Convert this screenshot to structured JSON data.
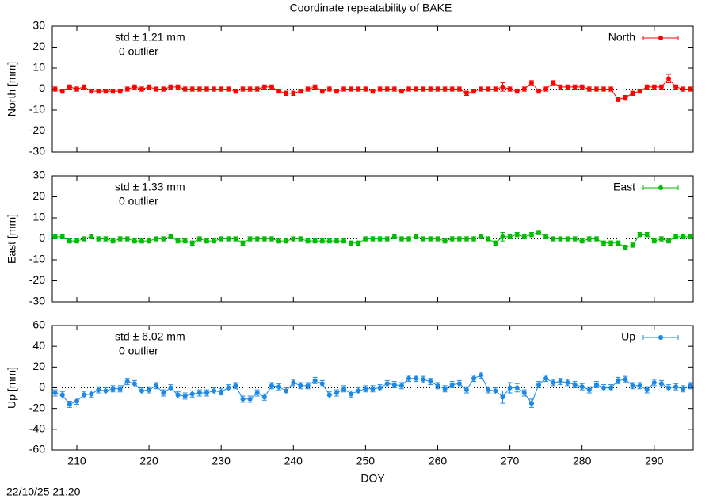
{
  "page": {
    "title": "Coordinate repeatability of BAKE",
    "timestamp": "22/10/25 21:20"
  },
  "chart_data": [
    {
      "type": "line",
      "ylabel": "North [mm]",
      "legend": "upper right",
      "zero_line": true,
      "show_xtick_labels": false,
      "annotations": [
        {
          "text": "std ± 1.21 mm",
          "color": "#ff0000"
        },
        {
          "text": "0 outlier",
          "color": "#000000"
        }
      ],
      "x": [
        207,
        208,
        209,
        210,
        211,
        212,
        213,
        214,
        215,
        216,
        217,
        218,
        219,
        220,
        221,
        222,
        223,
        224,
        225,
        226,
        227,
        228,
        229,
        230,
        231,
        232,
        233,
        234,
        235,
        236,
        237,
        238,
        239,
        240,
        241,
        242,
        243,
        244,
        245,
        246,
        247,
        248,
        249,
        250,
        251,
        252,
        253,
        254,
        255,
        256,
        257,
        258,
        259,
        260,
        261,
        262,
        263,
        264,
        265,
        266,
        267,
        268,
        269,
        270,
        271,
        272,
        273,
        274,
        275,
        276,
        277,
        278,
        279,
        280,
        281,
        282,
        283,
        284,
        285,
        286,
        287,
        288,
        289,
        290,
        291,
        292,
        293,
        294,
        295
      ],
      "xlim": [
        206.6,
        295.4
      ],
      "xticks": [
        210,
        220,
        230,
        240,
        250,
        260,
        270,
        280,
        290
      ],
      "ylim": [
        -30,
        30
      ],
      "yticks": [
        -30,
        -20,
        -10,
        0,
        10,
        20,
        30
      ],
      "series": [
        {
          "name": "North",
          "color": "#ff0000",
          "values": [
            0,
            -1,
            1,
            0,
            1,
            -1,
            -1,
            -1,
            -1,
            -1,
            0,
            1,
            0,
            1,
            0,
            0,
            1,
            1,
            0,
            0,
            0,
            0,
            0,
            0,
            0,
            -1,
            0,
            0,
            0,
            1,
            1,
            -1,
            -2,
            -2,
            -1,
            0,
            1,
            -1,
            0,
            -1,
            0,
            0,
            0,
            0,
            -1,
            0,
            0,
            0,
            -1,
            0,
            0,
            0,
            0,
            0,
            0,
            0,
            0,
            -2,
            -1,
            0,
            0,
            0,
            1,
            0,
            -1,
            0,
            3,
            -1,
            0,
            3,
            1,
            1,
            1,
            1,
            0,
            0,
            0,
            0,
            -5,
            -4,
            -2,
            -1,
            1,
            1,
            1,
            5,
            1,
            0,
            0
          ],
          "errors": [
            1,
            1,
            1,
            1,
            1,
            1,
            1,
            1,
            1,
            1,
            1,
            1,
            1,
            1,
            1,
            1,
            1,
            1,
            1,
            1,
            1,
            1,
            1,
            1,
            1,
            1,
            1,
            1,
            1,
            1,
            1,
            1,
            1,
            1,
            1,
            1,
            1,
            1,
            1,
            1,
            1,
            1,
            1,
            1,
            1,
            1,
            1,
            1,
            1,
            1,
            1,
            1,
            1,
            1,
            1,
            1,
            1,
            1,
            1,
            1,
            1,
            1,
            2,
            1,
            1,
            1,
            1,
            1,
            1,
            1,
            1,
            1,
            1,
            1,
            1,
            1,
            1,
            1,
            1,
            1,
            1,
            1,
            1,
            1,
            1,
            2,
            1,
            1,
            1
          ]
        }
      ]
    },
    {
      "type": "line",
      "ylabel": "East [mm]",
      "legend": "upper right",
      "zero_line": true,
      "show_xtick_labels": false,
      "annotations": [
        {
          "text": "std ± 1.33 mm",
          "color": "#00bb00"
        },
        {
          "text": "0 outlier",
          "color": "#000000"
        }
      ],
      "x": [
        207,
        208,
        209,
        210,
        211,
        212,
        213,
        214,
        215,
        216,
        217,
        218,
        219,
        220,
        221,
        222,
        223,
        224,
        225,
        226,
        227,
        228,
        229,
        230,
        231,
        232,
        233,
        234,
        235,
        236,
        237,
        238,
        239,
        240,
        241,
        242,
        243,
        244,
        245,
        246,
        247,
        248,
        249,
        250,
        251,
        252,
        253,
        254,
        255,
        256,
        257,
        258,
        259,
        260,
        261,
        262,
        263,
        264,
        265,
        266,
        267,
        268,
        269,
        270,
        271,
        272,
        273,
        274,
        275,
        276,
        277,
        278,
        279,
        280,
        281,
        282,
        283,
        284,
        285,
        286,
        287,
        288,
        289,
        290,
        291,
        292,
        293,
        294,
        295
      ],
      "xlim": [
        206.6,
        295.4
      ],
      "xticks": [
        210,
        220,
        230,
        240,
        250,
        260,
        270,
        280,
        290
      ],
      "ylim": [
        -30,
        30
      ],
      "yticks": [
        -30,
        -20,
        -10,
        0,
        10,
        20,
        30
      ],
      "series": [
        {
          "name": "East",
          "color": "#00bb00",
          "values": [
            1,
            1,
            -1,
            -1,
            0,
            1,
            0,
            0,
            -1,
            0,
            0,
            -1,
            -1,
            -1,
            0,
            0,
            1,
            -1,
            -1,
            -2,
            0,
            -1,
            -1,
            0,
            0,
            0,
            -2,
            0,
            0,
            0,
            0,
            -1,
            -1,
            0,
            0,
            -1,
            -1,
            -1,
            -1,
            -1,
            -1,
            -2,
            -2,
            0,
            0,
            0,
            0,
            1,
            0,
            0,
            1,
            0,
            0,
            0,
            -1,
            0,
            0,
            0,
            0,
            1,
            0,
            -2,
            1,
            1,
            2,
            1,
            2,
            3,
            1,
            0,
            0,
            0,
            0,
            -1,
            0,
            0,
            -2,
            -2,
            -2,
            -4,
            -3,
            2,
            2,
            -1,
            0,
            -1,
            1,
            1,
            1
          ],
          "errors": [
            1,
            1,
            1,
            1,
            1,
            1,
            1,
            1,
            1,
            1,
            1,
            1,
            1,
            1,
            1,
            1,
            1,
            1,
            1,
            1,
            1,
            1,
            1,
            1,
            1,
            1,
            1,
            1,
            1,
            1,
            1,
            1,
            1,
            1,
            1,
            1,
            1,
            1,
            1,
            1,
            1,
            1,
            1,
            1,
            1,
            1,
            1,
            1,
            1,
            1,
            1,
            1,
            1,
            1,
            1,
            1,
            1,
            1,
            1,
            1,
            1,
            1,
            2,
            1,
            1,
            1,
            1,
            1,
            1,
            1,
            1,
            1,
            1,
            1,
            1,
            1,
            1,
            1,
            1,
            1,
            1,
            1,
            1,
            1,
            1,
            1,
            1,
            1,
            1
          ]
        }
      ]
    },
    {
      "type": "line",
      "ylabel": "Up [mm]",
      "xlabel": "DOY",
      "legend": "upper right",
      "zero_line": true,
      "show_xtick_labels": true,
      "annotations": [
        {
          "text": "std ± 6.02 mm",
          "color": "#1e88e5"
        },
        {
          "text": "0 outlier",
          "color": "#000000"
        }
      ],
      "x": [
        207,
        208,
        209,
        210,
        211,
        212,
        213,
        214,
        215,
        216,
        217,
        218,
        219,
        220,
        221,
        222,
        223,
        224,
        225,
        226,
        227,
        228,
        229,
        230,
        231,
        232,
        233,
        234,
        235,
        236,
        237,
        238,
        239,
        240,
        241,
        242,
        243,
        244,
        245,
        246,
        247,
        248,
        249,
        250,
        251,
        252,
        253,
        254,
        255,
        256,
        257,
        258,
        259,
        260,
        261,
        262,
        263,
        264,
        265,
        266,
        267,
        268,
        269,
        270,
        271,
        272,
        273,
        274,
        275,
        276,
        277,
        278,
        279,
        280,
        281,
        282,
        283,
        284,
        285,
        286,
        287,
        288,
        289,
        290,
        291,
        292,
        293,
        294,
        295
      ],
      "xlim": [
        206.6,
        295.4
      ],
      "xticks": [
        210,
        220,
        230,
        240,
        250,
        260,
        270,
        280,
        290
      ],
      "ylim": [
        -60,
        60
      ],
      "yticks": [
        -60,
        -40,
        -20,
        0,
        20,
        40,
        60
      ],
      "series": [
        {
          "name": "Up",
          "color": "#1e88e5",
          "values": [
            -5,
            -7,
            -16,
            -13,
            -7,
            -6,
            -2,
            -3,
            -1,
            -1,
            6,
            4,
            -3,
            -2,
            2,
            -5,
            0,
            -7,
            -8,
            -6,
            -5,
            -5,
            -3,
            -4,
            0,
            2,
            -11,
            -11,
            -5,
            -9,
            2,
            1,
            -3,
            5,
            2,
            2,
            7,
            4,
            -7,
            -5,
            -1,
            -6,
            -3,
            -1,
            -1,
            0,
            4,
            3,
            2,
            9,
            9,
            8,
            6,
            2,
            -1,
            3,
            4,
            -2,
            9,
            12,
            -2,
            -3,
            -9,
            0,
            0,
            -5,
            -15,
            3,
            9,
            5,
            6,
            5,
            3,
            1,
            -2,
            3,
            0,
            0,
            7,
            8,
            2,
            2,
            -2,
            5,
            4,
            0,
            1,
            -1,
            2
          ],
          "errors": [
            3,
            3,
            3,
            3,
            3,
            3,
            3,
            3,
            3,
            3,
            3,
            3,
            3,
            3,
            3,
            3,
            3,
            3,
            3,
            3,
            3,
            3,
            3,
            3,
            3,
            3,
            3,
            3,
            3,
            3,
            3,
            3,
            3,
            3,
            3,
            3,
            3,
            3,
            3,
            3,
            3,
            3,
            3,
            3,
            3,
            3,
            3,
            3,
            3,
            3,
            3,
            3,
            3,
            3,
            3,
            3,
            3,
            3,
            3,
            3,
            3,
            3,
            6,
            5,
            4,
            3,
            4,
            3,
            3,
            3,
            3,
            3,
            3,
            3,
            3,
            3,
            3,
            3,
            3,
            3,
            3,
            3,
            3,
            3,
            3,
            3,
            3,
            3,
            3
          ]
        }
      ]
    }
  ]
}
